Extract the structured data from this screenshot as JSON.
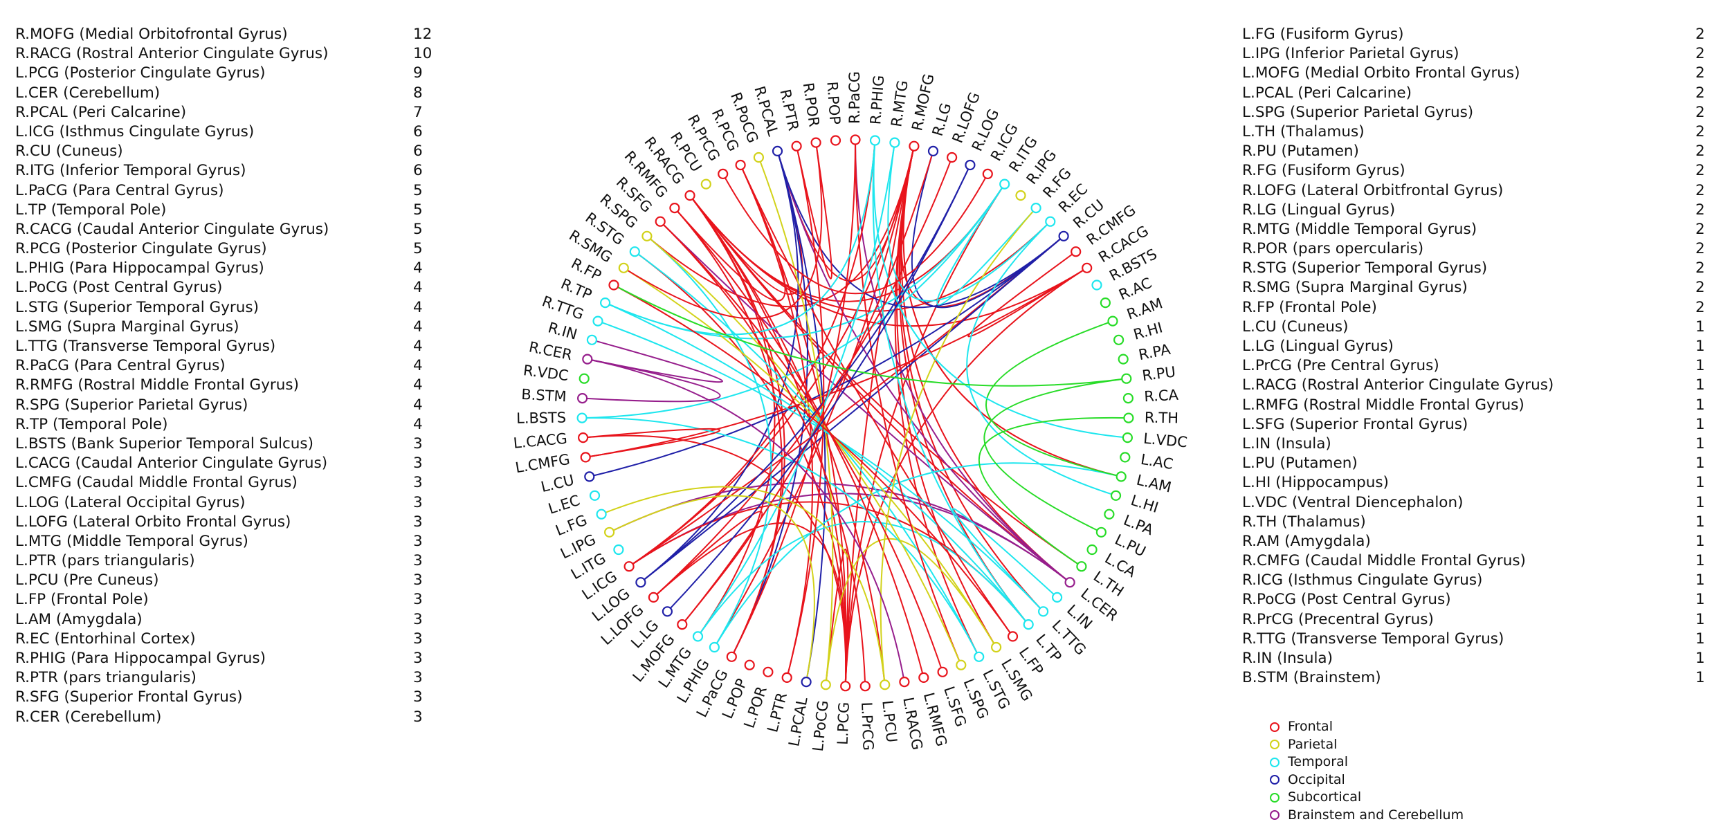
{
  "left_list": [
    {
      "label": "R.MOFG (Medial Orbitofrontal Gyrus)",
      "count": "12"
    },
    {
      "label": "R.RACG (Rostral Anterior Cingulate Gyrus)",
      "count": "10"
    },
    {
      "label": "L.PCG (Posterior Cingulate Gyrus)",
      "count": "9"
    },
    {
      "label": "L.CER (Cerebellum)",
      "count": "8"
    },
    {
      "label": "R.PCAL (Peri Calcarine)",
      "count": "7"
    },
    {
      "label": "L.ICG (Isthmus Cingulate Gyrus)",
      "count": "6"
    },
    {
      "label": "R.CU (Cuneus)",
      "count": "6"
    },
    {
      "label": "R.ITG (Inferior Temporal Gyrus)",
      "count": "6"
    },
    {
      "label": "L.PaCG (Para Central Gyrus)",
      "count": "5"
    },
    {
      "label": "L.TP (Temporal Pole)",
      "count": "5"
    },
    {
      "label": "R.CACG (Caudal Anterior Cingulate Gyrus)",
      "count": "5"
    },
    {
      "label": "R.PCG (Posterior Cingulate Gyrus)",
      "count": "5"
    },
    {
      "label": "L.PHIG (Para Hippocampal Gyrus)",
      "count": "4"
    },
    {
      "label": "L.PoCG (Post Central Gyrus)",
      "count": "4"
    },
    {
      "label": "L.STG (Superior Temporal Gyrus)",
      "count": "4"
    },
    {
      "label": "L.SMG (Supra Marginal Gyrus)",
      "count": "4"
    },
    {
      "label": "L.TTG (Transverse Temporal Gyrus)",
      "count": "4"
    },
    {
      "label": "R.PaCG (Para Central Gyrus)",
      "count": "4"
    },
    {
      "label": "R.RMFG (Rostral Middle Frontal Gyrus)",
      "count": "4"
    },
    {
      "label": "R.SPG (Superior Parietal Gyrus)",
      "count": "4"
    },
    {
      "label": "R.TP (Temporal Pole)",
      "count": "4"
    },
    {
      "label": "L.BSTS (Bank Superior Temporal Sulcus)",
      "count": "3"
    },
    {
      "label": "L.CACG (Caudal Anterior Cingulate Gyrus)",
      "count": "3"
    },
    {
      "label": "L.CMFG (Caudal Middle Frontal Gyrus)",
      "count": "3"
    },
    {
      "label": "L.LOG (Lateral Occipital Gyrus)",
      "count": "3"
    },
    {
      "label": "L.LOFG (Lateral Orbito Frontal Gyrus)",
      "count": "3"
    },
    {
      "label": "L.MTG (Middle Temporal Gyrus)",
      "count": "3"
    },
    {
      "label": "L.PTR (pars triangularis)",
      "count": "3"
    },
    {
      "label": "L.PCU (Pre Cuneus)",
      "count": "3"
    },
    {
      "label": "L.FP (Frontal Pole)",
      "count": "3"
    },
    {
      "label": "L.AM (Amygdala)",
      "count": "3"
    },
    {
      "label": "R.EC (Entorhinal Cortex)",
      "count": "3"
    },
    {
      "label": "R.PHIG (Para Hippocampal Gyrus)",
      "count": "3"
    },
    {
      "label": "R.PTR (pars triangularis)",
      "count": "3"
    },
    {
      "label": "R.SFG (Superior Frontal Gyrus)",
      "count": "3"
    },
    {
      "label": "R.CER (Cerebellum)",
      "count": "3"
    }
  ],
  "right_list": [
    {
      "label": "L.FG (Fusiform Gyrus)",
      "count": "2"
    },
    {
      "label": "L.IPG (Inferior Parietal Gyrus)",
      "count": "2"
    },
    {
      "label": "L.MOFG (Medial Orbito Frontal Gyrus)",
      "count": "2"
    },
    {
      "label": "L.PCAL (Peri Calcarine)",
      "count": "2"
    },
    {
      "label": "L.SPG (Superior Parietal Gyrus)",
      "count": "2"
    },
    {
      "label": "L.TH (Thalamus)",
      "count": "2"
    },
    {
      "label": "R.PU (Putamen)",
      "count": "2"
    },
    {
      "label": "R.FG (Fusiform Gyrus)",
      "count": "2"
    },
    {
      "label": "R.LOFG (Lateral Orbitfrontal Gyrus)",
      "count": "2"
    },
    {
      "label": "R.LG (Lingual Gyrus)",
      "count": "2"
    },
    {
      "label": "R.MTG (Middle Temporal Gyrus)",
      "count": "2"
    },
    {
      "label": "R.POR (pars opercularis)",
      "count": "2"
    },
    {
      "label": "R.STG (Superior Temporal Gyrus)",
      "count": "2"
    },
    {
      "label": "R.SMG (Supra Marginal Gyrus)",
      "count": "2"
    },
    {
      "label": "R.FP (Frontal Pole)",
      "count": "2"
    },
    {
      "label": "L.CU (Cuneus)",
      "count": "1"
    },
    {
      "label": "L.LG (Lingual Gyrus)",
      "count": "1"
    },
    {
      "label": "L.PrCG (Pre  Central Gyrus)",
      "count": "1"
    },
    {
      "label": "L.RACG (Rostral Anterior Cingulate Gyrus)",
      "count": "1"
    },
    {
      "label": "L.RMFG (Rostral Middle Frontal Gyrus)",
      "count": "1"
    },
    {
      "label": "L.SFG (Superior Frontal Gyrus)",
      "count": "1"
    },
    {
      "label": "L.IN (Insula)",
      "count": "1"
    },
    {
      "label": "L.PU (Putamen)",
      "count": "1"
    },
    {
      "label": "L.HI (Hippocampus)",
      "count": "1"
    },
    {
      "label": "L.VDC (Ventral Diencephalon)",
      "count": "1"
    },
    {
      "label": "R.TH (Thalamus)",
      "count": "1"
    },
    {
      "label": "R.AM (Amygdala)",
      "count": "1"
    },
    {
      "label": "R.CMFG (Caudal Middle Frontal Gyrus)",
      "count": "1"
    },
    {
      "label": "R.ICG (Isthmus Cingulate Gyrus)",
      "count": "1"
    },
    {
      "label": "R.PoCG (Post Central Gyrus)",
      "count": "1"
    },
    {
      "label": "R.PrCG (Precentral Gyrus)",
      "count": "1"
    },
    {
      "label": "R.TTG (Transverse Temporal Gyrus)",
      "count": "1"
    },
    {
      "label": "R.IN (Insula)",
      "count": "1"
    },
    {
      "label": "B.STM (Brainstem)",
      "count": "1"
    }
  ],
  "lobe_colors": {
    "frontal": "#e8141c",
    "parietal": "#d2d21a",
    "temporal": "#1ee6ee",
    "occipital": "#2020a8",
    "subcortical": "#28dc28",
    "brainstem": "#961e8c"
  },
  "legend": [
    {
      "label": "Frontal",
      "lobe": "frontal"
    },
    {
      "label": "Parietal",
      "lobe": "parietal"
    },
    {
      "label": "Temporal",
      "lobe": "temporal"
    },
    {
      "label": "Occipital",
      "lobe": "occipital"
    },
    {
      "label": "Subcortical",
      "lobe": "subcortical"
    },
    {
      "label": "Brainstem and Cerebellum",
      "lobe": "brainstem"
    }
  ],
  "nodes": [
    {
      "label": "R.PaCG",
      "lobe": "frontal"
    },
    {
      "label": "R.PHIG",
      "lobe": "temporal"
    },
    {
      "label": "R.MTG",
      "lobe": "temporal"
    },
    {
      "label": "R.MOFG",
      "lobe": "frontal"
    },
    {
      "label": "R.LG",
      "lobe": "occipital"
    },
    {
      "label": "R.LOFG",
      "lobe": "frontal"
    },
    {
      "label": "R.LOG",
      "lobe": "occipital"
    },
    {
      "label": "R.ICG",
      "lobe": "frontal"
    },
    {
      "label": "R.ITG",
      "lobe": "temporal"
    },
    {
      "label": "R.IPG",
      "lobe": "parietal"
    },
    {
      "label": "R.FG",
      "lobe": "temporal"
    },
    {
      "label": "R.EC",
      "lobe": "temporal"
    },
    {
      "label": "R.CU",
      "lobe": "occipital"
    },
    {
      "label": "R.CMFG",
      "lobe": "frontal"
    },
    {
      "label": "R.CACG",
      "lobe": "frontal"
    },
    {
      "label": "R.BSTS",
      "lobe": "temporal"
    },
    {
      "label": "R.AC",
      "lobe": "subcortical"
    },
    {
      "label": "R.AM",
      "lobe": "subcortical"
    },
    {
      "label": "R.HI",
      "lobe": "subcortical"
    },
    {
      "label": "R.PA",
      "lobe": "subcortical"
    },
    {
      "label": "R.PU",
      "lobe": "subcortical"
    },
    {
      "label": "R.CA",
      "lobe": "subcortical"
    },
    {
      "label": "R.TH",
      "lobe": "subcortical"
    },
    {
      "label": "L.VDC",
      "lobe": "subcortical"
    },
    {
      "label": "L.AC",
      "lobe": "subcortical"
    },
    {
      "label": "L.AM",
      "lobe": "subcortical"
    },
    {
      "label": "L.HI",
      "lobe": "subcortical"
    },
    {
      "label": "L.PA",
      "lobe": "subcortical"
    },
    {
      "label": "L.PU",
      "lobe": "subcortical"
    },
    {
      "label": "L.CA",
      "lobe": "subcortical"
    },
    {
      "label": "L.TH",
      "lobe": "subcortical"
    },
    {
      "label": "L.CER",
      "lobe": "brainstem"
    },
    {
      "label": "L.IN",
      "lobe": "temporal"
    },
    {
      "label": "L.TTG",
      "lobe": "temporal"
    },
    {
      "label": "L.TP",
      "lobe": "temporal"
    },
    {
      "label": "L.FP",
      "lobe": "frontal"
    },
    {
      "label": "L.SMG",
      "lobe": "parietal"
    },
    {
      "label": "L.STG",
      "lobe": "temporal"
    },
    {
      "label": "L.SPG",
      "lobe": "parietal"
    },
    {
      "label": "L.SFG",
      "lobe": "frontal"
    },
    {
      "label": "L.RMFG",
      "lobe": "frontal"
    },
    {
      "label": "L.RACG",
      "lobe": "frontal"
    },
    {
      "label": "L.PCU",
      "lobe": "parietal"
    },
    {
      "label": "L.PrCG",
      "lobe": "frontal"
    },
    {
      "label": "L.PCG",
      "lobe": "frontal"
    },
    {
      "label": "L.PoCG",
      "lobe": "parietal"
    },
    {
      "label": "L.PCAL",
      "lobe": "occipital"
    },
    {
      "label": "L.PTR",
      "lobe": "frontal"
    },
    {
      "label": "L.POR",
      "lobe": "frontal"
    },
    {
      "label": "L.POP",
      "lobe": "frontal"
    },
    {
      "label": "L.PaCG",
      "lobe": "frontal"
    },
    {
      "label": "L.PHIG",
      "lobe": "temporal"
    },
    {
      "label": "L.MTG",
      "lobe": "temporal"
    },
    {
      "label": "L.MOFG",
      "lobe": "frontal"
    },
    {
      "label": "L.LG",
      "lobe": "occipital"
    },
    {
      "label": "L.LOFG",
      "lobe": "frontal"
    },
    {
      "label": "L.LOG",
      "lobe": "occipital"
    },
    {
      "label": "L.ICG",
      "lobe": "frontal"
    },
    {
      "label": "L.ITG",
      "lobe": "temporal"
    },
    {
      "label": "L.IPG",
      "lobe": "parietal"
    },
    {
      "label": "L.FG",
      "lobe": "temporal"
    },
    {
      "label": "L.EC",
      "lobe": "temporal"
    },
    {
      "label": "L.CU",
      "lobe": "occipital"
    },
    {
      "label": "L.CMFG",
      "lobe": "frontal"
    },
    {
      "label": "L.CACG",
      "lobe": "frontal"
    },
    {
      "label": "L.BSTS",
      "lobe": "temporal"
    },
    {
      "label": "B.STM",
      "lobe": "brainstem"
    },
    {
      "label": "R.VDC",
      "lobe": "subcortical"
    },
    {
      "label": "R.CER",
      "lobe": "brainstem"
    },
    {
      "label": "R.IN",
      "lobe": "temporal"
    },
    {
      "label": "R.TTG",
      "lobe": "temporal"
    },
    {
      "label": "R.TP",
      "lobe": "temporal"
    },
    {
      "label": "R.FP",
      "lobe": "frontal"
    },
    {
      "label": "R.SMG",
      "lobe": "parietal"
    },
    {
      "label": "R.STG",
      "lobe": "temporal"
    },
    {
      "label": "R.SPG",
      "lobe": "parietal"
    },
    {
      "label": "R.SFG",
      "lobe": "frontal"
    },
    {
      "label": "R.RMFG",
      "lobe": "frontal"
    },
    {
      "label": "R.RACG",
      "lobe": "frontal"
    },
    {
      "label": "R.PCU",
      "lobe": "parietal"
    },
    {
      "label": "R.PrCG",
      "lobe": "frontal"
    },
    {
      "label": "R.PCG",
      "lobe": "frontal"
    },
    {
      "label": "R.PoCG",
      "lobe": "parietal"
    },
    {
      "label": "R.PCAL",
      "lobe": "occipital"
    },
    {
      "label": "R.PTR",
      "lobe": "frontal"
    },
    {
      "label": "R.POR",
      "lobe": "frontal"
    },
    {
      "label": "R.POP",
      "lobe": "frontal"
    }
  ],
  "edges": [
    [
      "R.MOFG",
      "L.PCG",
      "frontal"
    ],
    [
      "R.MOFG",
      "L.CER",
      "frontal"
    ],
    [
      "R.MOFG",
      "L.TP",
      "frontal"
    ],
    [
      "R.MOFG",
      "L.ICG",
      "frontal"
    ],
    [
      "R.MOFG",
      "R.PCAL",
      "frontal"
    ],
    [
      "R.MOFG",
      "L.STG",
      "frontal"
    ],
    [
      "R.MOFG",
      "L.PHIG",
      "frontal"
    ],
    [
      "R.MOFG",
      "R.CU",
      "frontal"
    ],
    [
      "R.MOFG",
      "L.SMG",
      "frontal"
    ],
    [
      "R.MOFG",
      "L.TTG",
      "frontal"
    ],
    [
      "R.MOFG",
      "R.SPG",
      "frontal"
    ],
    [
      "R.MOFG",
      "L.AM",
      "frontal"
    ],
    [
      "R.RACG",
      "L.PCG",
      "frontal"
    ],
    [
      "R.RACG",
      "L.CER",
      "frontal"
    ],
    [
      "R.RACG",
      "R.ITG",
      "frontal"
    ],
    [
      "R.RACG",
      "L.PaCG",
      "frontal"
    ],
    [
      "R.RACG",
      "R.CACG",
      "frontal"
    ],
    [
      "R.RACG",
      "L.MTG",
      "frontal"
    ],
    [
      "R.RACG",
      "L.PCU",
      "frontal"
    ],
    [
      "R.RACG",
      "R.EC",
      "frontal"
    ],
    [
      "R.RACG",
      "L.TH",
      "frontal"
    ],
    [
      "R.RACG",
      "R.PCAL",
      "frontal"
    ],
    [
      "L.PCG",
      "R.CACG",
      "frontal"
    ],
    [
      "L.PCG",
      "R.PCG",
      "frontal"
    ],
    [
      "L.PCG",
      "L.LOFG",
      "frontal"
    ],
    [
      "L.PCG",
      "R.ITG",
      "frontal"
    ],
    [
      "L.PCG",
      "L.PoCG",
      "frontal"
    ],
    [
      "L.PCG",
      "R.STG",
      "frontal"
    ],
    [
      "L.PCG",
      "L.CACG",
      "frontal"
    ],
    [
      "L.CER",
      "R.PaCG",
      "brainstem"
    ],
    [
      "L.CER",
      "R.PCAL",
      "brainstem"
    ],
    [
      "L.CER",
      "L.ICG",
      "brainstem"
    ],
    [
      "L.CER",
      "R.SFG",
      "brainstem"
    ],
    [
      "L.CER",
      "L.IPG",
      "brainstem"
    ],
    [
      "R.PCAL",
      "L.PaCG",
      "occipital"
    ],
    [
      "R.PCAL",
      "L.LOG",
      "occipital"
    ],
    [
      "R.PCAL",
      "R.CU",
      "occipital"
    ],
    [
      "R.PCAL",
      "L.PCAL",
      "occipital"
    ],
    [
      "L.ICG",
      "R.CU",
      "frontal"
    ],
    [
      "L.ICG",
      "L.TP",
      "frontal"
    ],
    [
      "L.ICG",
      "R.PHIG",
      "frontal"
    ],
    [
      "R.CU",
      "L.CU",
      "occipital"
    ],
    [
      "R.CU",
      "R.LG",
      "occipital"
    ],
    [
      "R.CU",
      "L.LOG",
      "occipital"
    ],
    [
      "R.ITG",
      "R.TP",
      "temporal"
    ],
    [
      "R.ITG",
      "L.BSTS",
      "temporal"
    ],
    [
      "R.ITG",
      "R.FG",
      "temporal"
    ],
    [
      "L.PaCG",
      "R.PaCG",
      "frontal"
    ],
    [
      "L.PaCG",
      "R.RMFG",
      "frontal"
    ],
    [
      "L.TP",
      "R.TP",
      "temporal"
    ],
    [
      "L.TP",
      "L.MTG",
      "temporal"
    ],
    [
      "L.TP",
      "R.PHIG",
      "temporal"
    ],
    [
      "R.CACG",
      "L.CMFG",
      "frontal"
    ],
    [
      "R.CACG",
      "R.CMFG",
      "frontal"
    ],
    [
      "R.PCG",
      "R.RMFG",
      "frontal"
    ],
    [
      "R.PCG",
      "L.PTR",
      "frontal"
    ],
    [
      "R.PCG",
      "L.FP",
      "frontal"
    ],
    [
      "L.PHIG",
      "R.SPG",
      "temporal"
    ],
    [
      "L.PHIG",
      "L.AM",
      "temporal"
    ],
    [
      "L.PoCG",
      "L.SMG",
      "parietal"
    ],
    [
      "L.PoCG",
      "R.PoCG",
      "parietal"
    ],
    [
      "L.STG",
      "R.STG",
      "temporal"
    ],
    [
      "L.STG",
      "L.BSTS",
      "temporal"
    ],
    [
      "L.SMG",
      "R.SMG",
      "parietal"
    ],
    [
      "L.TTG",
      "R.TTG",
      "temporal"
    ],
    [
      "L.TTG",
      "L.IN",
      "temporal"
    ],
    [
      "R.PaCG",
      "L.SPG",
      "frontal"
    ],
    [
      "R.RMFG",
      "L.RMFG",
      "frontal"
    ],
    [
      "R.SPG",
      "L.SPG",
      "parietal"
    ],
    [
      "R.TP",
      "R.PHIG",
      "temporal"
    ],
    [
      "L.CACG",
      "L.CMFG",
      "frontal"
    ],
    [
      "L.LOG",
      "R.LOG",
      "occipital"
    ],
    [
      "L.LOFG",
      "R.LOFG",
      "frontal"
    ],
    [
      "L.LOFG",
      "L.MOFG",
      "frontal"
    ],
    [
      "L.MTG",
      "R.MTG",
      "temporal"
    ],
    [
      "L.PTR",
      "R.PTR",
      "frontal"
    ],
    [
      "L.PCU",
      "L.FG",
      "parietal"
    ],
    [
      "L.PCU",
      "R.FG",
      "parietal"
    ],
    [
      "L.FP",
      "R.FP",
      "frontal"
    ],
    [
      "L.AM",
      "R.AM",
      "subcortical"
    ],
    [
      "R.EC",
      "R.MTG",
      "temporal"
    ],
    [
      "R.EC",
      "L.HI",
      "temporal"
    ],
    [
      "R.PHIG",
      "L.VDC",
      "temporal"
    ],
    [
      "R.PTR",
      "R.POR",
      "frontal"
    ],
    [
      "R.SFG",
      "L.SFG",
      "frontal"
    ],
    [
      "R.SFG",
      "L.PrCG",
      "frontal"
    ],
    [
      "R.CER",
      "B.STM",
      "brainstem"
    ],
    [
      "R.CER",
      "R.IN",
      "brainstem"
    ],
    [
      "R.CER",
      "L.RACG",
      "brainstem"
    ],
    [
      "L.TH",
      "R.TH",
      "subcortical"
    ],
    [
      "R.PU",
      "L.PU",
      "subcortical"
    ],
    [
      "R.PU",
      "R.FP",
      "subcortical"
    ],
    [
      "L.MOFG",
      "R.LG",
      "frontal"
    ],
    [
      "L.IPG",
      "L.PCAL",
      "parietal"
    ],
    [
      "R.POR",
      "R.SMG",
      "frontal"
    ],
    [
      "R.ICG",
      "R.PrCG",
      "frontal"
    ],
    [
      "L.LG",
      "R.LOG",
      "occipital"
    ]
  ]
}
